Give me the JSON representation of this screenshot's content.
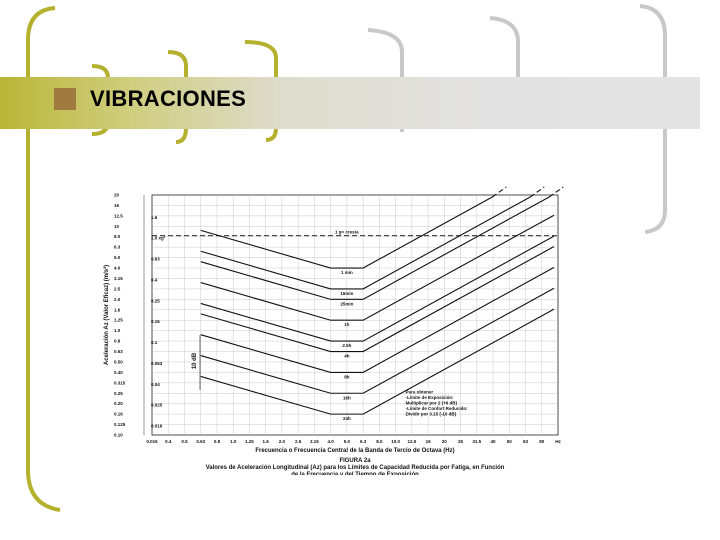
{
  "slide": {
    "title": "VIBRACIONES"
  },
  "chart_data": {
    "type": "line",
    "figure_label": "FIGURA 2a",
    "caption_line1": "Valores de Aceleración Longitudinal (Az) para los Límites de Capacidad Reducida por Fatiga, en Función",
    "caption_line2": "de la Frecuencia y del Tiempo de Exposición",
    "xlabel": "Frecuencia o Frecuencia Central de la Banda de Tercio de Octava (Hz)",
    "ylabel": "Aceleración Az (Valor Eficaz) (m/s²)",
    "y_inner_label": "10 dB",
    "xscale": "log",
    "yscale": "log",
    "x_ticks": [
      "0.016",
      "0.4",
      "0.5",
      "0.63",
      "0.8",
      "1.0",
      "1.25",
      "1.6",
      "2.0",
      "2.5",
      "3.15",
      "4.0",
      "5.0",
      "6.3",
      "8.0",
      "10.0",
      "12.5",
      "16",
      "20",
      "25",
      "31.5",
      "40",
      "50",
      "63",
      "80",
      "Hz"
    ],
    "y_ticks": [
      "20",
      "16",
      "12.5",
      "10",
      "8.0",
      "6.3",
      "5.0",
      "4.0",
      "3.15",
      "2.5",
      "2.0",
      "1.6",
      "1.25",
      "1.0",
      "0.8",
      "0.63",
      "0.50",
      "0.40",
      "0.315",
      "0.25",
      "0.20",
      "0.16",
      "0.125",
      "0.10"
    ],
    "g_labels": [
      "1.6",
      "1.0 xg²",
      "0.63",
      "0.4",
      "0.25",
      "0.16",
      "0.1",
      "0.063",
      "0.04",
      "0.025",
      "0.016"
    ],
    "reference_line_label": "1 g= cresta",
    "curves": [
      {
        "name": "1 min",
        "floor": 4.0
      },
      {
        "name": "16min",
        "floor": 2.5
      },
      {
        "name": "25min",
        "floor": 2.0
      },
      {
        "name": "1h",
        "floor": 1.25
      },
      {
        "name": "2.5h",
        "floor": 0.8
      },
      {
        "name": "4h",
        "floor": 0.63
      },
      {
        "name": "8h",
        "floor": 0.4
      },
      {
        "name": "16h",
        "floor": 0.25
      },
      {
        "name": "24h",
        "floor": 0.16
      }
    ],
    "flat_range_hz": [
      4.0,
      8.0
    ],
    "note": [
      "Para obtener",
      "-Límite de Exposición:",
      " Multiplicar por 2 (+6 dB)",
      "-Límite de Confort Reducido:",
      " Dividir por 3.15 (-10 dB)"
    ]
  }
}
